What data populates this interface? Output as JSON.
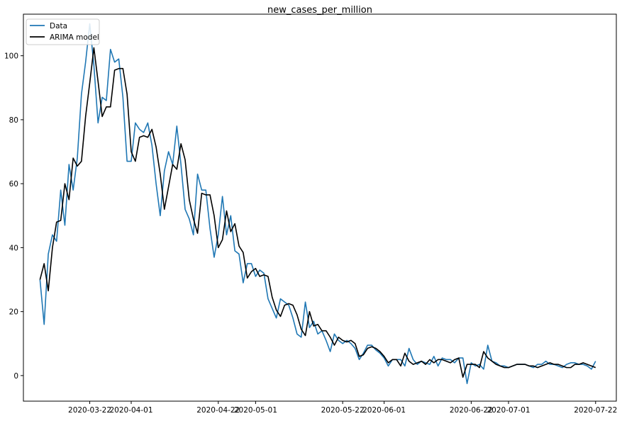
{
  "chart_data": {
    "type": "line",
    "title": "new_cases_per_million",
    "xlabel": "",
    "ylabel": "",
    "xlim": [
      "2020-03-06",
      "2020-07-27"
    ],
    "ylim": [
      -8,
      113
    ],
    "x_ticks": [
      "2020-03-22",
      "2020-04-01",
      "2020-04-22",
      "2020-05-01",
      "2020-05-22",
      "2020-06-01",
      "2020-06-22",
      "2020-07-01",
      "2020-07-22"
    ],
    "y_ticks": [
      0,
      20,
      40,
      60,
      80,
      100
    ],
    "legend_position": "top-left",
    "grid": false,
    "x_start": "2020-03-10",
    "series": [
      {
        "name": "Data",
        "color": "#1f77b4",
        "values": [
          30,
          16,
          38,
          44,
          42,
          58,
          47,
          66,
          58,
          68,
          88,
          98,
          110,
          97,
          79,
          87,
          86,
          102,
          98,
          99,
          87,
          67,
          67,
          79,
          77,
          76,
          79,
          72,
          60,
          50,
          64,
          70,
          66,
          78,
          66,
          52,
          49,
          44,
          63,
          58,
          58,
          46,
          37,
          44,
          56,
          44,
          50,
          39,
          38,
          29,
          35,
          35,
          31,
          33,
          32,
          24,
          21,
          18,
          24,
          23,
          22,
          18,
          13,
          12,
          23,
          15,
          17,
          13,
          14,
          11,
          7.5,
          13,
          11,
          10,
          11,
          10,
          8.5,
          5,
          7,
          9.5,
          9.5,
          8,
          7,
          5.5,
          3,
          5,
          5,
          5,
          3,
          8.5,
          5,
          3.5,
          4.5,
          4,
          3.5,
          6,
          3,
          5.5,
          5,
          5,
          4,
          5.5,
          5.5,
          -2.5,
          4,
          3,
          3.5,
          2,
          9.5,
          4.5,
          4,
          3,
          3,
          2.5,
          3,
          3.5,
          3.5,
          3.5,
          3,
          2.5,
          3.5,
          3.5,
          4.5,
          3.5,
          3.5,
          3,
          2.5,
          3.5,
          4,
          4,
          3.5,
          3.5,
          3,
          2,
          4.5
        ]
      },
      {
        "name": "ARIMA model",
        "color": "#000000",
        "values": [
          30,
          35,
          26.5,
          40,
          48,
          48.5,
          60,
          55,
          68,
          65.5,
          67,
          81,
          91.5,
          102.5,
          92,
          81,
          84,
          84,
          95.5,
          96,
          96,
          88,
          70,
          67,
          74.5,
          75,
          74.5,
          77,
          71.5,
          63,
          52,
          59,
          66,
          64.5,
          72.5,
          67.5,
          55,
          49,
          44.5,
          57,
          56.5,
          56.5,
          50,
          40,
          42.5,
          51.5,
          45,
          47.5,
          40.5,
          38.5,
          30.5,
          32.5,
          33.5,
          31,
          31.5,
          31,
          24.5,
          20.5,
          18.5,
          22,
          22.5,
          22,
          19,
          14.5,
          12.5,
          20,
          15.5,
          16,
          14,
          14,
          12,
          9.5,
          12,
          11,
          10.5,
          11,
          10,
          6,
          6.5,
          8.5,
          9,
          8.5,
          7.5,
          6,
          4,
          5,
          5,
          3,
          7,
          4.5,
          3.5,
          4,
          4.5,
          3.5,
          5,
          4,
          5,
          5,
          4.5,
          4,
          5,
          5.5,
          -0.5,
          3.5,
          3.5,
          3.5,
          2.5,
          7.5,
          5.5,
          4.5,
          3.5,
          3,
          2.5,
          2.5,
          3,
          3.5,
          3.5,
          3.5,
          3,
          3,
          2.5,
          3,
          3.5,
          4,
          3.5,
          3.5,
          3,
          2.5,
          2.5,
          3.5,
          3.5,
          4,
          3.5,
          3,
          2.5
        ]
      }
    ]
  }
}
